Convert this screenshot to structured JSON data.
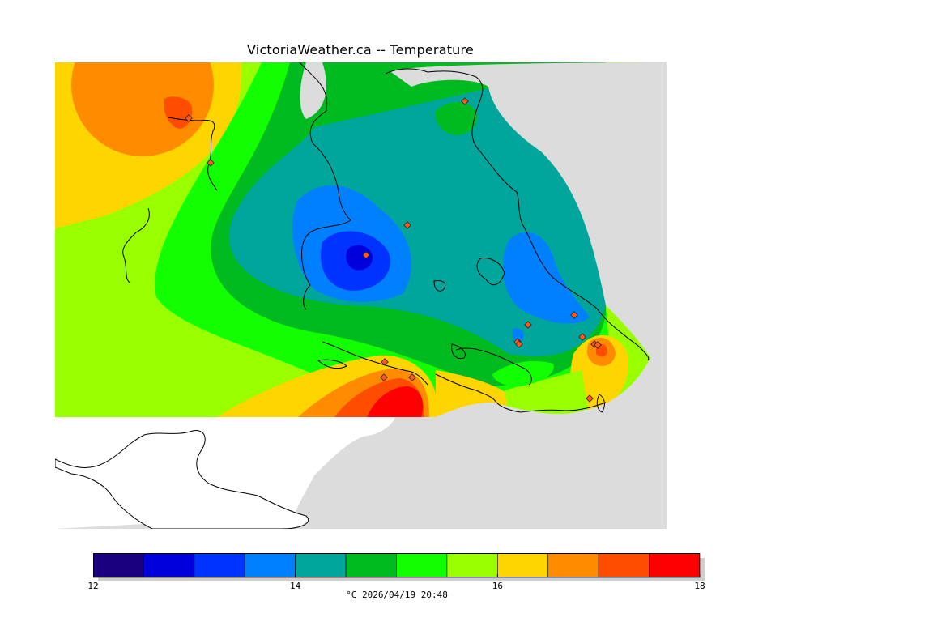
{
  "title": "VictoriaWeather.ca -- Temperature",
  "caption": "°C 2026/04/19 20:48",
  "colors": {
    "land_outside": "#dcdcdc",
    "no_data": "#ffffff",
    "coast": "#000000",
    "station": "#ff5a1a"
  },
  "legend": {
    "min": 12,
    "max": 18,
    "tick_labels": [
      "12",
      "14",
      "16",
      "18"
    ],
    "tick_values": [
      12,
      14,
      16,
      18
    ],
    "bins": [
      {
        "from": 12.0,
        "to": 12.5,
        "color": "#1a007f"
      },
      {
        "from": 12.5,
        "to": 13.0,
        "color": "#0000dd"
      },
      {
        "from": 13.0,
        "to": 13.5,
        "color": "#0033ff"
      },
      {
        "from": 13.5,
        "to": 14.0,
        "color": "#0080ff"
      },
      {
        "from": 14.0,
        "to": 14.5,
        "color": "#00a59c"
      },
      {
        "from": 14.5,
        "to": 15.0,
        "color": "#00bb20"
      },
      {
        "from": 15.0,
        "to": 15.5,
        "color": "#11ff00"
      },
      {
        "from": 15.5,
        "to": 16.0,
        "color": "#99ff00"
      },
      {
        "from": 16.0,
        "to": 16.5,
        "color": "#ffd500"
      },
      {
        "from": 16.5,
        "to": 17.0,
        "color": "#ff8c00"
      },
      {
        "from": 17.0,
        "to": 17.5,
        "color": "#ff4d00"
      },
      {
        "from": 17.5,
        "to": 18.0,
        "color": "#ff0000"
      }
    ]
  }
}
